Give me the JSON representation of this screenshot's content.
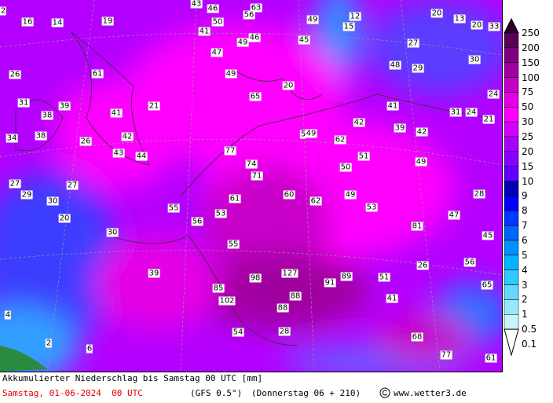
{
  "map": {
    "labels": [
      2,
      43,
      46,
      63,
      56,
      16,
      14,
      19,
      50,
      49,
      12,
      15,
      20,
      13,
      20,
      33,
      41,
      46,
      49,
      45,
      27,
      47,
      30,
      26,
      61,
      49,
      48,
      29,
      20,
      31,
      39,
      21,
      65,
      24,
      41,
      38,
      41,
      31,
      24,
      21,
      42,
      39,
      42,
      34,
      38,
      26,
      42,
      5,
      49,
      62,
      43,
      44,
      77,
      51,
      49,
      74,
      50,
      71,
      27,
      27,
      29,
      30,
      61,
      60,
      62,
      49,
      28,
      55,
      53,
      53,
      20,
      56,
      47,
      81,
      30,
      45,
      55,
      56,
      26,
      39,
      127,
      98,
      89,
      91,
      51,
      85,
      65,
      88,
      41,
      102,
      88,
      4,
      54,
      28,
      68,
      2,
      6,
      77,
      61
    ]
  },
  "legend": {
    "levels": [
      250,
      200,
      150,
      100,
      75,
      50,
      30,
      25,
      20,
      15,
      10,
      9,
      8,
      7,
      6,
      5,
      4,
      3,
      2,
      1,
      0.5,
      0.1
    ],
    "colors": [
      "#2a0028",
      "#5a005a",
      "#7e007e",
      "#a000a0",
      "#c400c4",
      "#e400e4",
      "#ff00ff",
      "#d400ff",
      "#aa00ff",
      "#8800ff",
      "#6000ff",
      "#0000b4",
      "#0000ff",
      "#0038ff",
      "#0064ff",
      "#0090ff",
      "#00b4ff",
      "#30c8ff",
      "#64d8ff",
      "#96e8ff",
      "#c8f4ff",
      "#ffffff"
    ]
  },
  "footer": {
    "title": "Akkumulierter Niederschlag bis Samstag 00 UTC [mm]",
    "date": "Samstag, 01-06-2024  00 UTC",
    "model": "(GFS 0.5°)",
    "run": "(Donnerstag 06 + 210)",
    "site": "www.wetter3.de"
  }
}
